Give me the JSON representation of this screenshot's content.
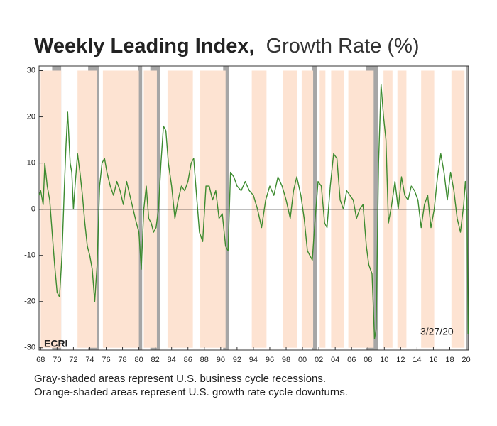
{
  "chart_data": {
    "type": "line",
    "title": "Weekly Leading Index,",
    "subtitle": "Growth Rate (%)",
    "notes": [
      "Gray-shaded areas represent U.S. business cycle recessions.",
      "Orange-shaded areas represent U.S. growth rate cycle downturns."
    ],
    "annotation": "3/27/20",
    "logo": "ECRI",
    "xlim": [
      1967.8,
      2020.3
    ],
    "ylim": [
      -30.5,
      31
    ],
    "yticks": [
      30,
      20,
      10,
      0,
      -10,
      -20,
      -30
    ],
    "xticks": [
      {
        "value": 1968,
        "label": "68"
      },
      {
        "value": 1970,
        "label": "70"
      },
      {
        "value": 1972,
        "label": "72"
      },
      {
        "value": 1974,
        "label": "74"
      },
      {
        "value": 1976,
        "label": "76"
      },
      {
        "value": 1978,
        "label": "78"
      },
      {
        "value": 1980,
        "label": "80"
      },
      {
        "value": 1982,
        "label": "82"
      },
      {
        "value": 1984,
        "label": "84"
      },
      {
        "value": 1986,
        "label": "86"
      },
      {
        "value": 1988,
        "label": "88"
      },
      {
        "value": 1990,
        "label": "90"
      },
      {
        "value": 1992,
        "label": "92"
      },
      {
        "value": 1994,
        "label": "94"
      },
      {
        "value": 1996,
        "label": "96"
      },
      {
        "value": 1998,
        "label": "98"
      },
      {
        "value": 2000,
        "label": "00"
      },
      {
        "value": 2002,
        "label": "02"
      },
      {
        "value": 2004,
        "label": "04"
      },
      {
        "value": 2006,
        "label": "06"
      },
      {
        "value": 2008,
        "label": "08"
      },
      {
        "value": 2010,
        "label": "10"
      },
      {
        "value": 2012,
        "label": "12"
      },
      {
        "value": 2014,
        "label": "14"
      },
      {
        "value": 2016,
        "label": "16"
      },
      {
        "value": 2018,
        "label": "18"
      },
      {
        "value": 2020,
        "label": "20"
      }
    ],
    "recession_color": "#a6a6a6",
    "downturn_color": "#fde3d2",
    "recessions": [
      [
        1969.4,
        1970.5
      ],
      [
        1973.8,
        1975.1
      ],
      [
        1979.9,
        1980.4
      ],
      [
        1981.4,
        1982.6
      ],
      [
        1990.3,
        1991.0
      ],
      [
        2001.2,
        2001.8
      ],
      [
        2007.8,
        2009.2
      ],
      [
        2020.0,
        2020.3
      ]
    ],
    "downturns": [
      [
        1968.0,
        1970.5
      ],
      [
        1972.5,
        1974.9
      ],
      [
        1975.6,
        1980.0
      ],
      [
        1980.6,
        1982.2
      ],
      [
        1983.5,
        1986.6
      ],
      [
        1987.5,
        1990.6
      ],
      [
        1993.8,
        1995.6
      ],
      [
        1997.6,
        1999.3
      ],
      [
        1999.9,
        2001.3
      ],
      [
        2002.1,
        2002.8
      ],
      [
        2003.5,
        2005.1
      ],
      [
        2005.6,
        2008.7
      ],
      [
        2009.9,
        2011.0
      ],
      [
        2011.6,
        2012.7
      ],
      [
        2014.5,
        2016.1
      ],
      [
        2018.2,
        2019.8
      ]
    ],
    "x": [
      1967.8,
      1968.0,
      1968.3,
      1968.5,
      1968.8,
      1969.1,
      1969.4,
      1969.7,
      1970.0,
      1970.3,
      1970.6,
      1970.9,
      1971.1,
      1971.3,
      1971.6,
      1971.8,
      1972.0,
      1972.2,
      1972.5,
      1972.8,
      1973.1,
      1973.4,
      1973.7,
      1974.0,
      1974.3,
      1974.6,
      1974.9,
      1975.2,
      1975.5,
      1975.8,
      1976.1,
      1976.5,
      1976.9,
      1977.3,
      1977.7,
      1978.1,
      1978.5,
      1978.9,
      1979.3,
      1979.7,
      1980.0,
      1980.3,
      1980.6,
      1980.9,
      1981.2,
      1981.5,
      1981.8,
      1982.1,
      1982.4,
      1982.7,
      1983.0,
      1983.3,
      1983.6,
      1984.0,
      1984.4,
      1984.8,
      1985.2,
      1985.6,
      1986.0,
      1986.4,
      1986.7,
      1987.0,
      1987.4,
      1987.8,
      1988.2,
      1988.6,
      1989.0,
      1989.4,
      1989.8,
      1990.2,
      1990.6,
      1990.9,
      1991.2,
      1991.6,
      1992.0,
      1992.5,
      1993.0,
      1993.5,
      1994.0,
      1994.5,
      1995.0,
      1995.5,
      1996.0,
      1996.5,
      1997.0,
      1997.5,
      1998.0,
      1998.5,
      1998.9,
      1999.3,
      1999.8,
      2000.2,
      2000.6,
      2000.9,
      2001.2,
      2001.5,
      2001.9,
      2002.3,
      2002.7,
      2003.0,
      2003.4,
      2003.8,
      2004.2,
      2004.6,
      2005.0,
      2005.4,
      2005.8,
      2006.2,
      2006.6,
      2007.0,
      2007.4,
      2007.8,
      2008.1,
      2008.5,
      2008.8,
      2009.0,
      2009.3,
      2009.6,
      2009.9,
      2010.2,
      2010.5,
      2010.9,
      2011.3,
      2011.7,
      2012.1,
      2012.5,
      2012.9,
      2013.3,
      2013.7,
      2014.1,
      2014.5,
      2014.9,
      2015.3,
      2015.7,
      2016.1,
      2016.5,
      2016.9,
      2017.3,
      2017.7,
      2018.1,
      2018.5,
      2018.9,
      2019.3,
      2019.7,
      2019.9,
      2020.1,
      2020.24
    ],
    "series": [
      {
        "color": "#3d8b2f",
        "values": [
          3,
          4,
          1,
          10,
          5,
          2,
          -5,
          -12,
          -18,
          -19,
          -10,
          5,
          14,
          21,
          10,
          8,
          0,
          5,
          12,
          8,
          3,
          -3,
          -8,
          -10,
          -13,
          -20,
          -12,
          5,
          10,
          11,
          8,
          5,
          3,
          6,
          4,
          1,
          6,
          3,
          0,
          -3,
          -5,
          -13,
          0,
          5,
          -2,
          -3,
          -5,
          -4,
          0,
          10,
          18,
          17,
          10,
          5,
          -2,
          2,
          5,
          4,
          6,
          10,
          11,
          4,
          -5,
          -7,
          5,
          5,
          2,
          4,
          -2,
          -1,
          -8,
          -9,
          8,
          7,
          5,
          4,
          6,
          4,
          3,
          0,
          -4,
          2,
          5,
          3,
          7,
          5,
          2,
          -2,
          4,
          7,
          3,
          -2,
          -9,
          -10,
          -11,
          -3,
          6,
          5,
          -3,
          -4,
          5,
          12,
          11,
          2,
          0,
          4,
          3,
          2,
          -2,
          0,
          1,
          -8,
          -12,
          -14,
          -28,
          -26,
          10,
          27,
          20,
          15,
          -3,
          1,
          6,
          0,
          7,
          3,
          2,
          5,
          4,
          2,
          -4,
          1,
          3,
          -4,
          0,
          7,
          12,
          8,
          2,
          8,
          4,
          -2,
          -5,
          1,
          6,
          2,
          -27
        ]
      }
    ]
  }
}
